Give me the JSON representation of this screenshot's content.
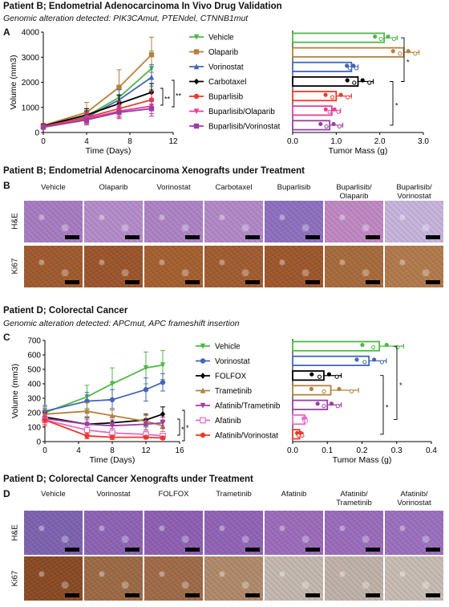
{
  "panelA": {
    "header": "Patient B; Endometrial Adenocarcinoma In Vivo Drug Validation",
    "subtitle": "Genomic alteration detected: PIK3CAmut, PTENdel, CTNNB1mut",
    "letter": "A"
  },
  "panelB": {
    "header": "Patient B; Endometrial Adenocarcinoma Xenografts under Treatment",
    "letter": "B",
    "columns": [
      "Vehicle",
      "Olaparib",
      "Vorinostat",
      "Carbotaxel",
      "Buparlisib",
      "Buparlisib/\nOlaparib",
      "Buparlisib/\nVorinostat"
    ],
    "rows": [
      "H&E",
      "Ki67"
    ]
  },
  "panelC": {
    "header": "Patient D; Colorectal Cancer",
    "subtitle": "Genomic alteration detected: APCmut, APC frameshift insertion",
    "letter": "C"
  },
  "panelD": {
    "header": "Patient D; Colorectal Cancer Xenografts under Treatment",
    "letter": "D",
    "columns": [
      "Vehicle",
      "Vorinostat",
      "FOLFOX",
      "Trametinib",
      "Afatinib",
      "Afatinib/\nTrametinib",
      "Afatinib/\nVorinostat"
    ],
    "rows": [
      "H&E",
      "Ki67"
    ]
  },
  "chart_data": [
    {
      "id": "A-growth",
      "type": "line",
      "xlabel": "Time (Days)",
      "ylabel": "Volume (mm3)",
      "xlim": [
        0,
        12
      ],
      "ylim": [
        0,
        4000
      ],
      "xticks": [
        0,
        4,
        8,
        12
      ],
      "yticks": [
        0,
        1000,
        2000,
        3000,
        4000
      ],
      "x": [
        0,
        4,
        7,
        10
      ],
      "annotations": [
        "**",
        "**"
      ],
      "series": [
        {
          "name": "Vehicle",
          "color": "#4fb848",
          "marker": "triangle-down",
          "values": [
            250,
            650,
            1400,
            2550
          ],
          "err": [
            80,
            300,
            450,
            700
          ]
        },
        {
          "name": "Olaparib",
          "color": "#b5813c",
          "marker": "square",
          "values": [
            280,
            800,
            1800,
            3100
          ],
          "err": [
            80,
            400,
            700,
            700
          ]
        },
        {
          "name": "Vorinostat",
          "color": "#4466b8",
          "marker": "triangle-up",
          "values": [
            230,
            600,
            1300,
            2200
          ],
          "err": [
            70,
            250,
            400,
            500
          ]
        },
        {
          "name": "Carbotaxel",
          "color": "#000000",
          "marker": "diamond",
          "values": [
            260,
            700,
            1150,
            1600
          ],
          "err": [
            70,
            250,
            350,
            350
          ]
        },
        {
          "name": "Buparlisib",
          "color": "#ea3a2c",
          "marker": "circle",
          "values": [
            240,
            600,
            950,
            1300
          ],
          "err": [
            70,
            220,
            300,
            350
          ]
        },
        {
          "name": "Buparlisib/Olaparib",
          "color": "#e53f9b",
          "marker": "triangle-down",
          "values": [
            220,
            550,
            850,
            1050
          ],
          "err": [
            60,
            200,
            250,
            300
          ]
        },
        {
          "name": "Buparlisib/Vorinostat",
          "color": "#9a3ea5",
          "marker": "square",
          "values": [
            210,
            500,
            800,
            950
          ],
          "err": [
            60,
            200,
            250,
            300
          ]
        }
      ]
    },
    {
      "id": "A-mass",
      "type": "bar",
      "orientation": "horizontal",
      "xlabel": "Tumor Mass (g)",
      "xlim": [
        0,
        3
      ],
      "xticks": [
        0.0,
        1.0,
        2.0,
        3.0
      ],
      "annotations": [
        "*",
        "*"
      ],
      "categories": [
        "Vehicle",
        "Olaparib",
        "Vorinostat",
        "Carbotaxel",
        "Buparlisib",
        "Buparlisib/Olaparib",
        "Buparlisib/Vorinostat"
      ],
      "values": [
        2.1,
        2.55,
        1.35,
        1.5,
        1.0,
        0.9,
        0.85
      ],
      "err": [
        0.3,
        0.35,
        0.15,
        0.35,
        0.35,
        0.2,
        0.3
      ],
      "colors": [
        "#4fb848",
        "#b5813c",
        "#4466b8",
        "#000000",
        "#ea3a2c",
        "#e53f9b",
        "#9a3ea5"
      ]
    },
    {
      "id": "C-growth",
      "type": "line",
      "xlabel": "Time (Days)",
      "ylabel": "Volume (mm3)",
      "xlim": [
        0,
        16
      ],
      "ylim": [
        0,
        700
      ],
      "xticks": [
        0,
        4,
        8,
        12,
        16
      ],
      "yticks": [
        0,
        100,
        200,
        300,
        400,
        500,
        600,
        700
      ],
      "x": [
        0,
        5,
        8,
        12,
        14
      ],
      "annotations": [
        "*",
        "*"
      ],
      "series": [
        {
          "name": "Vehicle",
          "color": "#4fb848",
          "marker": "triangle-down",
          "values": [
            200,
            310,
            400,
            510,
            530
          ],
          "err": [
            40,
            80,
            110,
            110,
            100
          ]
        },
        {
          "name": "Vorinostat",
          "color": "#4466b8",
          "marker": "circle",
          "values": [
            210,
            280,
            290,
            360,
            410
          ],
          "err": [
            40,
            60,
            70,
            80,
            60
          ]
        },
        {
          "name": "FOLFOX",
          "color": "#000000",
          "marker": "diamond",
          "values": [
            170,
            120,
            130,
            150,
            190
          ],
          "err": [
            30,
            50,
            40,
            40,
            50
          ]
        },
        {
          "name": "Trametinib",
          "color": "#b5813c",
          "marker": "triangle-up",
          "values": [
            190,
            210,
            180,
            140,
            110
          ],
          "err": [
            40,
            60,
            50,
            40,
            40
          ]
        },
        {
          "name": "Afatinib/Trametinib",
          "color": "#9a3ea5",
          "marker": "triangle-down",
          "values": [
            160,
            120,
            110,
            120,
            130
          ],
          "err": [
            30,
            40,
            40,
            40,
            40
          ]
        },
        {
          "name": "Afatinib",
          "color": "#e56bc8",
          "marker": "square-open",
          "values": [
            150,
            80,
            60,
            50,
            40
          ],
          "err": [
            30,
            30,
            30,
            20,
            15
          ]
        },
        {
          "name": "Afatinib/Vorinostat",
          "color": "#ea3a2c",
          "marker": "circle",
          "values": [
            150,
            40,
            30,
            30,
            25
          ],
          "err": [
            40,
            20,
            15,
            10,
            10
          ]
        }
      ]
    },
    {
      "id": "C-mass",
      "type": "bar",
      "orientation": "horizontal",
      "xlabel": "Tumor Mass (g)",
      "xlim": [
        0,
        0.4
      ],
      "xticks": [
        0.0,
        0.1,
        0.2,
        0.3,
        0.4
      ],
      "annotations": [
        "*",
        "*"
      ],
      "categories": [
        "Vehicle",
        "Vorinostat",
        "FOLFOX",
        "Trametinib",
        "Afatinib/Trametinib",
        "Afatinib",
        "Afatinib/Vorinostat"
      ],
      "values": [
        0.25,
        0.22,
        0.09,
        0.11,
        0.1,
        0.035,
        0.02
      ],
      "err": [
        0.07,
        0.05,
        0.05,
        0.08,
        0.04,
        0.005,
        0.01
      ],
      "colors": [
        "#4fb848",
        "#4466b8",
        "#000000",
        "#b5813c",
        "#9a3ea5",
        "#e56bc8",
        "#ea3a2c"
      ]
    }
  ],
  "colors": {
    "he_b": [
      "#a77cc2",
      "#b48cca",
      "#ad83c5",
      "#b289c7",
      "#8e70c0",
      "#c088c3",
      "#c7b4dc"
    ],
    "ki67_b": [
      "#a05a2e",
      "#9c552b",
      "#a5602f",
      "#a15c30",
      "#9e572c",
      "#a76b3c",
      "#b27a4c"
    ],
    "he_d": [
      "#7e62b0",
      "#8d63b5",
      "#8e5fb3",
      "#9163b6",
      "#9c6cbb",
      "#9a6cbc",
      "#9b70bf"
    ],
    "ki67_d": [
      "#8a4a24",
      "#9c6a44",
      "#a06a48",
      "#b08a6a",
      "#c4b8b0",
      "#c0b2aa",
      "#c8bcb4"
    ]
  }
}
